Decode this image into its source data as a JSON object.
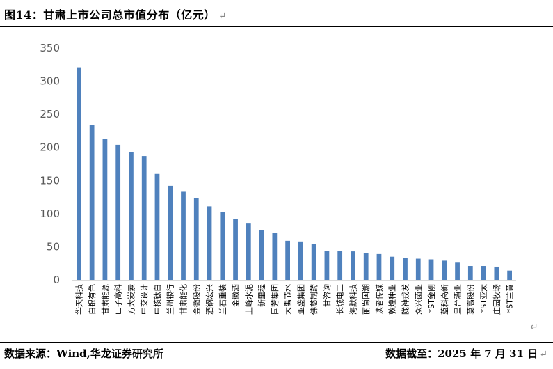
{
  "figure": {
    "title": "图14：甘肃上市公司总市值分布（亿元）",
    "return_mark": "↵"
  },
  "footer": {
    "source": "数据来源：Wind,华龙证券研究所",
    "cutoff": "数据截至：2025 年 7 月 31 日",
    "return_mark": "↵"
  },
  "chart_data": {
    "type": "bar",
    "title": "",
    "xlabel": "",
    "ylabel": "",
    "ylim": [
      0,
      350
    ],
    "yticks": [
      0,
      50,
      100,
      150,
      200,
      250,
      300,
      350
    ],
    "grid": false,
    "legend": "none",
    "bar_color": "#4f81bd",
    "categories": [
      "华天科技",
      "白银有色",
      "甘肃能源",
      "山子高科",
      "方大炭素",
      "中交设计",
      "中核钛白",
      "兰州银行",
      "甘肃能化",
      "金徽股份",
      "酒钢宏兴",
      "兰石重装",
      "金徽酒",
      "上峰水泥",
      "新里程",
      "国芳集团",
      "大禹节水",
      "亚盛集团",
      "佛慈制药",
      "甘咨询",
      "长城电工",
      "海默科技",
      "丽尚国潮",
      "读者传媒",
      "敦煌种业",
      "陇神戎发",
      "众兴菌业",
      "*ST金刚",
      "蓝科高新",
      "皇台酒业",
      "莫高股份",
      "*ST亚太",
      "庄园牧场",
      "*ST兰黄"
    ],
    "values": [
      321,
      234,
      213,
      204,
      193,
      187,
      160,
      142,
      133,
      124,
      111,
      102,
      92,
      85,
      75,
      71,
      59,
      58,
      54,
      44,
      44,
      43,
      40,
      39,
      35,
      33,
      32,
      31,
      29,
      26,
      21,
      21,
      20,
      14
    ]
  }
}
